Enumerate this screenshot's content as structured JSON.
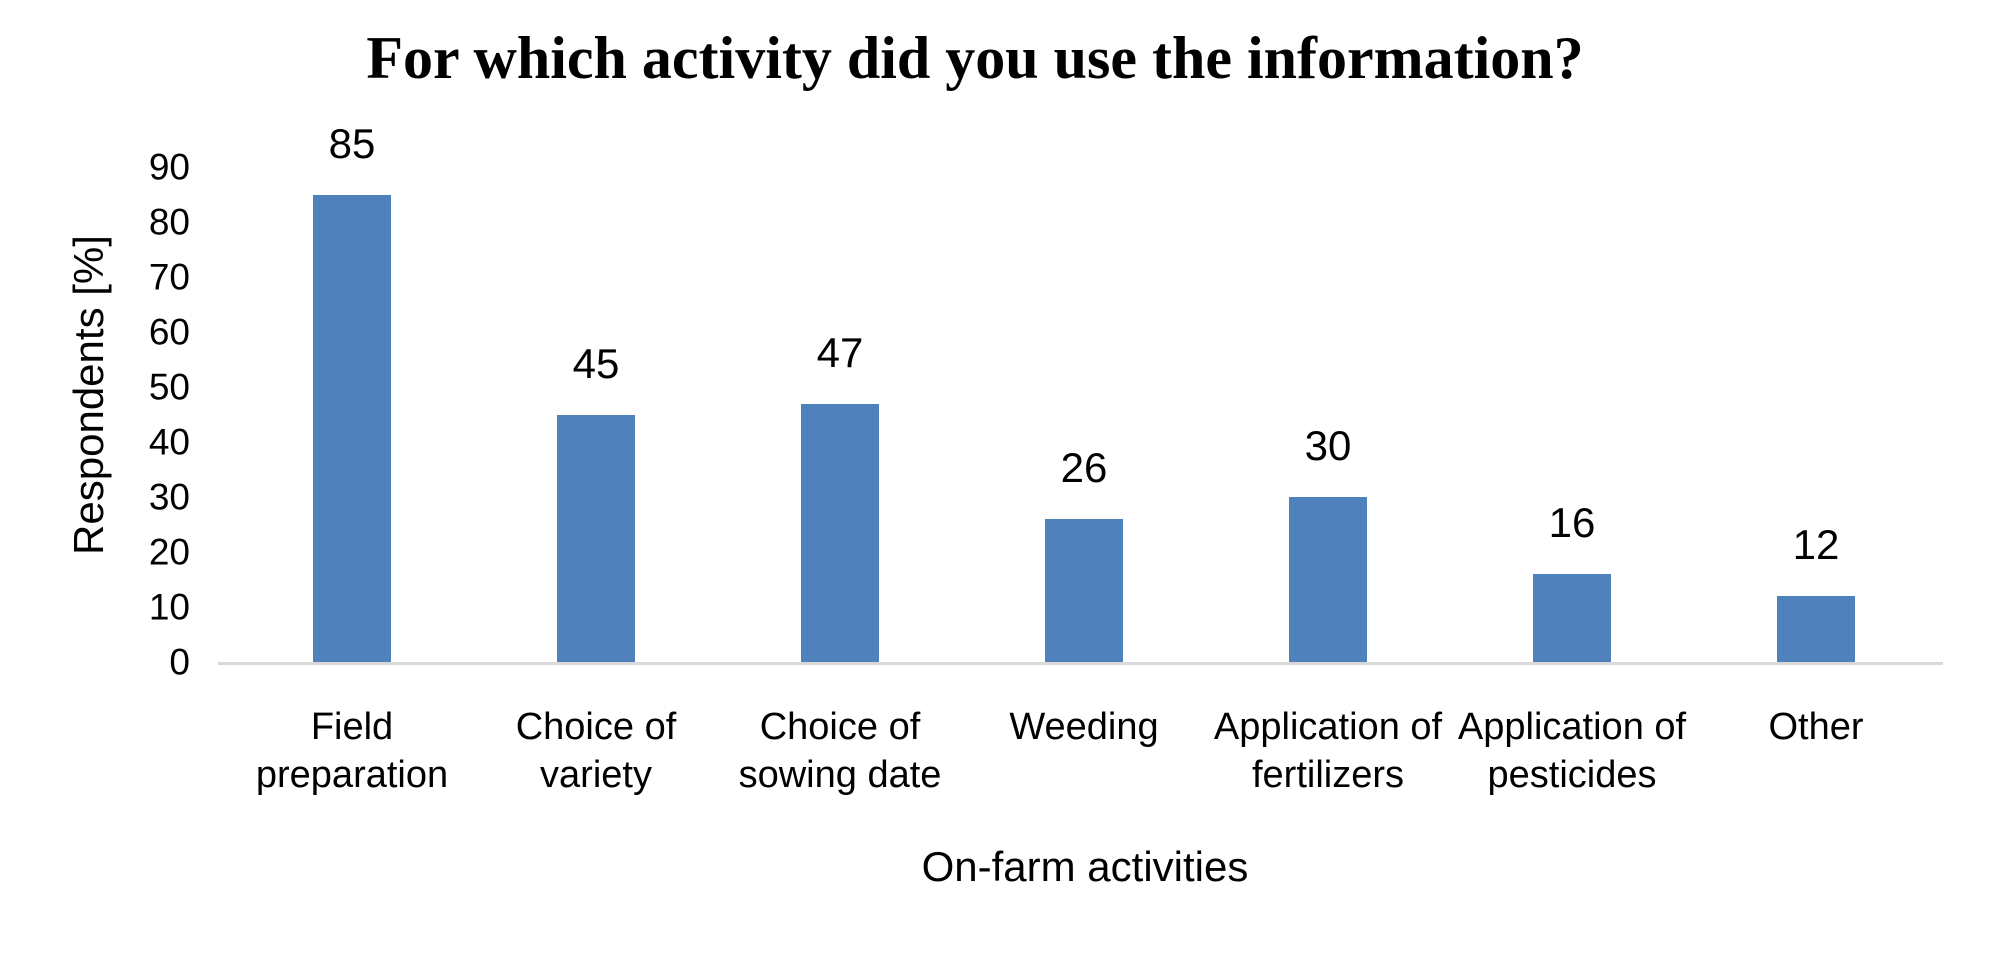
{
  "chart_data": {
    "type": "bar",
    "title": "For which activity did you use the information?",
    "xlabel": "On-farm activities",
    "ylabel": "Respondents [%]",
    "categories": [
      "Field preparation",
      "Choice of variety",
      "Choice of sowing date",
      "Weeding",
      "Application of fertilizers",
      "Application of pesticides",
      "Other"
    ],
    "values": [
      85,
      45,
      47,
      26,
      30,
      16,
      12
    ],
    "data_labels": [
      "85",
      "45",
      "47",
      "26",
      "30",
      "16",
      "12"
    ],
    "yticks": [
      0,
      10,
      20,
      30,
      40,
      50,
      60,
      70,
      80,
      90
    ],
    "ylim": [
      0,
      90
    ],
    "grid": "off",
    "legend": "none",
    "bar_color": "#4f81bd",
    "axis_line_color": "#d9d9d9",
    "text_color": "#000000"
  }
}
